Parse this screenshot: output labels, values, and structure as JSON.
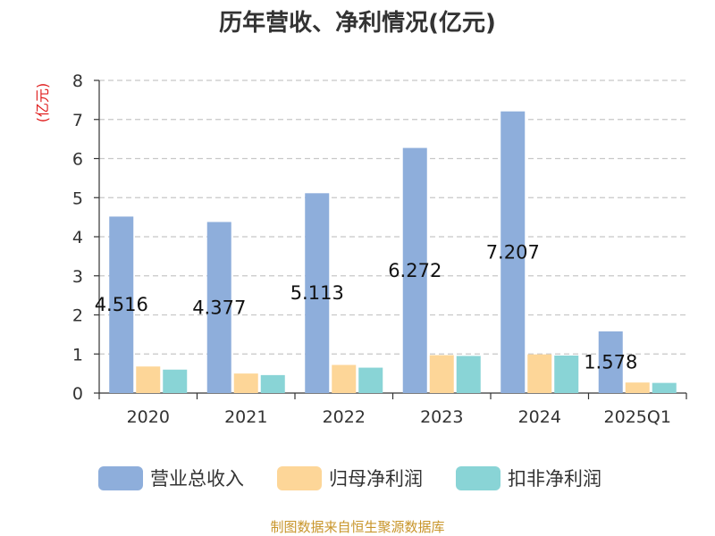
{
  "chart_data": {
    "type": "bar",
    "title": "历年营收、净利情况(亿元)",
    "ylabel": "(亿元)",
    "xlabel": "",
    "categories": [
      "2020",
      "2021",
      "2022",
      "2023",
      "2024",
      "2025Q1"
    ],
    "ylim": [
      0,
      8
    ],
    "yticks": [
      "0",
      "1",
      "2",
      "3",
      "4",
      "5",
      "6",
      "7",
      "8"
    ],
    "grid": true,
    "legend_position": "bottom",
    "series": [
      {
        "name": "营业总收入",
        "color": "#8eaedb",
        "values": [
          4.516,
          4.377,
          5.113,
          6.272,
          7.207,
          1.578
        ],
        "labels": [
          "4.516",
          "4.377",
          "5.113",
          "6.272",
          "7.207",
          "1.578"
        ]
      },
      {
        "name": "归母净利润",
        "color": "#fdd698",
        "values": [
          0.68,
          0.5,
          0.72,
          0.97,
          0.99,
          0.27
        ]
      },
      {
        "name": "扣非净利润",
        "color": "#89d4d6",
        "values": [
          0.6,
          0.46,
          0.65,
          0.95,
          0.96,
          0.26
        ]
      }
    ],
    "source": "制图数据来自恒生聚源数据库"
  }
}
